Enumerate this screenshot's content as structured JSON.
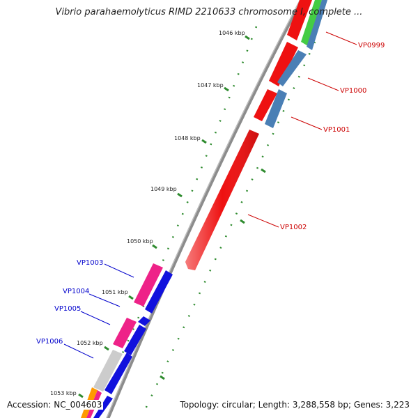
{
  "title": "Vibrio parahaemolyticus RIMD 2210633 chromosome I, complete ...",
  "accession_text": "Accession: NC_004603",
  "summary_text": "Topology: circular; Length: 3,288,558 bp; Genes: 3,223",
  "colors": {
    "backbone": "#8c8c8c",
    "tick_marks": "#2e8b2e",
    "label_red": "#cc0000",
    "label_blue": "#0000cc",
    "gene_red": "#ee1111",
    "gene_steelblue": "#4a7fb5",
    "gene_green": "#44cc44",
    "gene_pink": "#ee2288",
    "gene_blue": "#1111dd",
    "gene_grey": "#cccccc",
    "gene_orange": "#ff9900"
  },
  "ticks": [
    {
      "label": "1046 kbp"
    },
    {
      "label": "1047 kbp"
    },
    {
      "label": "1048 kbp"
    },
    {
      "label": "1049 kbp"
    },
    {
      "label": "1050 kbp"
    },
    {
      "label": "1051 kbp"
    },
    {
      "label": "1052 kbp"
    },
    {
      "label": "1053 kbp"
    }
  ],
  "gene_labels": [
    {
      "text": "VP0999",
      "color": "#cc0000"
    },
    {
      "text": "VP1000",
      "color": "#cc0000"
    },
    {
      "text": "VP1001",
      "color": "#cc0000"
    },
    {
      "text": "VP1002",
      "color": "#cc0000"
    },
    {
      "text": "VP1003",
      "color": "#0000cc"
    },
    {
      "text": "VP1004",
      "color": "#0000cc"
    },
    {
      "text": "VP1005",
      "color": "#0000cc"
    },
    {
      "text": "VP1006",
      "color": "#0000cc"
    }
  ]
}
